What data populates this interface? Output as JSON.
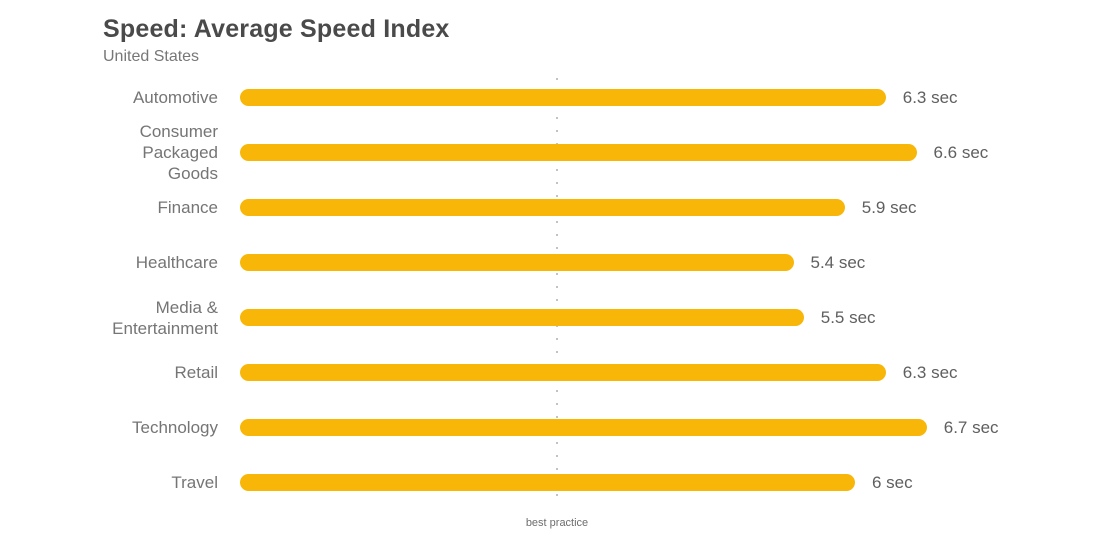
{
  "chart_data": {
    "type": "bar",
    "orientation": "horizontal",
    "title": "Speed: Average Speed Index",
    "subtitle": "United States",
    "unit": "sec",
    "categories": [
      "Automotive",
      "Consumer Packaged Goods",
      "Finance",
      "Healthcare",
      "Media & Entertainment",
      "Retail",
      "Technology",
      "Travel"
    ],
    "values": [
      6.3,
      6.6,
      5.9,
      5.4,
      5.5,
      6.3,
      6.7,
      6
    ],
    "value_labels": [
      "6.3 sec",
      "6.6 sec",
      "5.9 sec",
      "5.4 sec",
      "5.5 sec",
      "6.3 sec",
      "6.7 sec",
      "6 sec"
    ],
    "xlim": [
      0,
      6.7
    ],
    "grid": false,
    "legend": false,
    "annotation": {
      "label": "best practice",
      "value": 3
    },
    "colors": {
      "bar": "#F8B708",
      "title_text": "#4a4a4a",
      "subtitle_text": "#777777",
      "category_text": "#757575",
      "value_text": "#5f5f5f",
      "reference_line": "#c3c3c3"
    }
  }
}
